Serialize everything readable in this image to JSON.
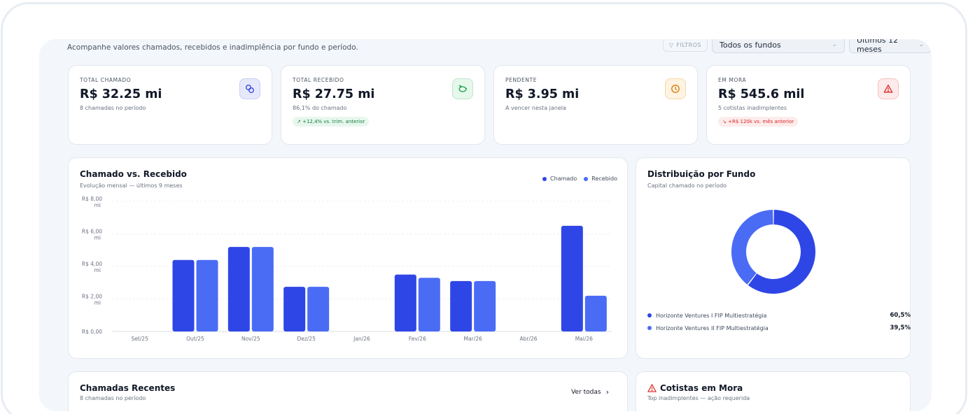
{
  "header": {
    "subtitle": "Acompanhe valores chamados, recebidos e inadimplência por fundo e período.",
    "filters_label": "FILTROS",
    "fund_select": "Todos os fundos",
    "period_select": "Últimos 12 meses"
  },
  "kpis": [
    {
      "label": "TOTAL CHAMADO",
      "value": "R$ 32.25 mi",
      "sub": "8 chamadas no período",
      "icon": "coins-icon"
    },
    {
      "label": "TOTAL RECEBIDO",
      "value": "R$ 27.75 mi",
      "sub": "86,1% do chamado",
      "badge": "↗ +12,4% vs. trim. anterior",
      "icon": "piggy-bank-icon"
    },
    {
      "label": "PENDENTE",
      "value": "R$ 3.95 mi",
      "sub": "A vencer nesta janela",
      "icon": "clock-icon"
    },
    {
      "label": "EM MORA",
      "value": "R$ 545.6 mil",
      "sub": "5 cotistas inadimplentes",
      "badge": "↘ +R$ 120k vs. mês anterior",
      "icon": "alert-triangle-icon"
    }
  ],
  "colors": {
    "chamado": "#2f46e6",
    "recebido": "#4a6cf5",
    "fund1": "#2f46e6",
    "fund2": "#4a6cf5"
  },
  "bar_card": {
    "title": "Chamado vs. Recebido",
    "subtitle": "Evolução mensal — últimos 9 meses",
    "legend": {
      "chamado": "Chamado",
      "recebido": "Recebido"
    }
  },
  "pie_card": {
    "title": "Distribuição por Fundo",
    "subtitle": "Capital chamado no período",
    "items": [
      {
        "name": "Horizonte Ventures I FIP Multiestratégia",
        "pct": "60,5%"
      },
      {
        "name": "Horizonte Ventures II FIP Multiestratégia",
        "pct": "39,5%"
      }
    ]
  },
  "recent_card": {
    "title": "Chamadas Recentes",
    "subtitle": "8 chamadas no período",
    "link": "Ver todas"
  },
  "mora_card": {
    "title": "Cotistas em Mora",
    "subtitle": "Top inadimplentes — ação requerida"
  },
  "chart_data": [
    {
      "type": "bar",
      "title": "Chamado vs. Recebido",
      "subtitle": "Evolução mensal — últimos 9 meses",
      "categories": [
        "Set/25",
        "Out/25",
        "Nov/25",
        "Dez/25",
        "Jan/26",
        "Fev/26",
        "Mar/26",
        "Abr/26",
        "Mai/26"
      ],
      "series": [
        {
          "name": "Chamado",
          "values": [
            0,
            4.4,
            5.2,
            2.75,
            0,
            3.5,
            3.1,
            0,
            6.5
          ]
        },
        {
          "name": "Recebido",
          "values": [
            0,
            4.4,
            5.2,
            2.75,
            0,
            3.3,
            3.1,
            0,
            2.2
          ]
        }
      ],
      "yticks": [
        [
          "R$ 8,00",
          "mi"
        ],
        [
          "R$ 6,00",
          "mi"
        ],
        [
          "R$ 4,00",
          "mi"
        ],
        [
          "R$ 2,00",
          "mi"
        ],
        [
          "R$ 0,00",
          ""
        ]
      ],
      "ylim": [
        0,
        8
      ],
      "grid": true,
      "legend": "top-right"
    },
    {
      "type": "pie",
      "title": "Distribuição por Fundo",
      "subtitle": "Capital chamado no período",
      "labels": [
        "Horizonte Ventures I FIP Multiestratégia",
        "Horizonte Ventures II FIP Multiestratégia"
      ],
      "values": [
        60.5,
        39.5
      ],
      "legend": "bottom"
    }
  ]
}
